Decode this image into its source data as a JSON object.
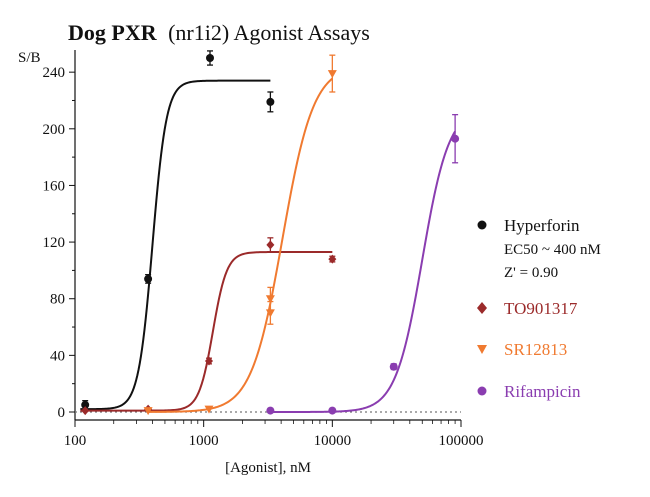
{
  "chart_data": {
    "type": "scatter",
    "title_bold": "Dog PXR",
    "title_rest": "(nr1i2) Agonist Assays",
    "xlabel": "[Agonist], nM",
    "ylabel": "S/B",
    "xscale": "log",
    "xlim": [
      100,
      100000
    ],
    "ylim": [
      0,
      250
    ],
    "xticks": [
      "100",
      "1000",
      "10000",
      "100000"
    ],
    "xtick_values": [
      100,
      1000,
      10000,
      100000
    ],
    "yticks": [
      "0",
      "40",
      "80",
      "120",
      "160",
      "200",
      "240"
    ],
    "ytick_values": [
      0,
      40,
      80,
      120,
      160,
      200,
      240
    ],
    "baseline": {
      "y": 0,
      "style": "dotted"
    },
    "legend_position": "right",
    "series": [
      {
        "name": "Hyperforin",
        "color": "#111111",
        "marker": "circle",
        "points": [
          {
            "x": 120,
            "y": 5,
            "err": 3
          },
          {
            "x": 370,
            "y": 94,
            "err": 3
          },
          {
            "x": 1120,
            "y": 250,
            "err": 5
          },
          {
            "x": 3300,
            "y": 219,
            "err": 7
          }
        ],
        "curve": {
          "bottom": 2,
          "top": 234,
          "ec50": 400,
          "hill": 8,
          "xmin": 110,
          "xmax": 3300
        },
        "notes": [
          "EC50 ~ 400 nM",
          "Z' = 0.90"
        ]
      },
      {
        "name": "TO901317",
        "color": "#9b2a2a",
        "marker": "diamond",
        "points": [
          {
            "x": 120,
            "y": 1,
            "err": 0
          },
          {
            "x": 370,
            "y": 2,
            "err": 0
          },
          {
            "x": 1100,
            "y": 36,
            "err": 2
          },
          {
            "x": 3300,
            "y": 118,
            "err": 5
          },
          {
            "x": 10000,
            "y": 108,
            "err": 2
          }
        ],
        "curve": {
          "bottom": 1,
          "top": 113,
          "ec50": 1180,
          "hill": 8,
          "xmin": 110,
          "xmax": 10000
        }
      },
      {
        "name": "SR12813",
        "color": "#f07a30",
        "marker": "triangle-down",
        "points": [
          {
            "x": 370,
            "y": 1,
            "err": 0
          },
          {
            "x": 1100,
            "y": 2,
            "err": 0
          },
          {
            "x": 3300,
            "y": 70,
            "err": 8
          },
          {
            "x": 3300,
            "y": 80,
            "err": 8
          },
          {
            "x": 10000,
            "y": 239,
            "err": 13
          }
        ],
        "curve": {
          "bottom": 0,
          "top": 245,
          "ec50": 4100,
          "hill": 3.6,
          "xmin": 370,
          "xmax": 10000
        }
      },
      {
        "name": "Rifampicin",
        "color": "#8a3db0",
        "marker": "circle",
        "points": [
          {
            "x": 3300,
            "y": 1,
            "err": 0
          },
          {
            "x": 10000,
            "y": 1,
            "err": 0
          },
          {
            "x": 30000,
            "y": 32,
            "err": 2
          },
          {
            "x": 90000,
            "y": 193,
            "err": 17
          }
        ],
        "curve": {
          "bottom": 0,
          "top": 215,
          "ec50": 50000,
          "hill": 4.2,
          "xmin": 3300,
          "xmax": 90000
        }
      }
    ]
  }
}
